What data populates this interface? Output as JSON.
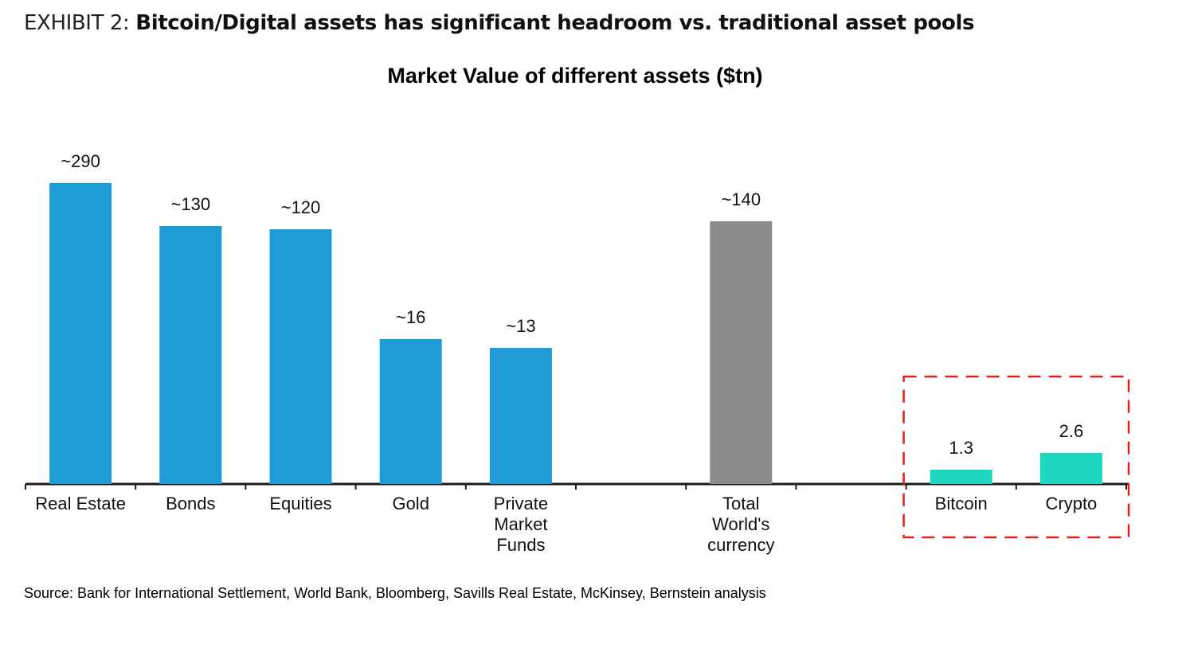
{
  "exhibit": {
    "prefix": "EXHIBIT 2: ",
    "headline": "Bitcoin/Digital assets has significant headroom vs. traditional asset pools"
  },
  "source": "Source: Bank for International Settlement, World Bank, Bloomberg, Savills Real Estate, McKinsey, Bernstein analysis",
  "chart_data": {
    "type": "bar",
    "title": "Market Value of different assets ($tn)",
    "categories": [
      [
        "Real Estate"
      ],
      [
        "Bonds"
      ],
      [
        "Equities"
      ],
      [
        "Gold"
      ],
      [
        "Private",
        "Market",
        "Funds"
      ],
      [
        ""
      ],
      [
        "Total",
        "World's",
        "currency"
      ],
      [
        ""
      ],
      [
        "Bitcoin"
      ],
      [
        "Crypto"
      ]
    ],
    "values": [
      290,
      130,
      120,
      16,
      13,
      null,
      140,
      null,
      1.3,
      2.6
    ],
    "data_labels": [
      "~290",
      "~130",
      "~120",
      "~16",
      "~13",
      "",
      "~140",
      "",
      "1.3",
      "2.6"
    ],
    "scale": "non-linear (illustrative)",
    "colors": {
      "traditional": "#1f9bd7",
      "currency": "#8c8c8c",
      "digital": "#1dd7c2",
      "highlight_box": "#e02020"
    },
    "bar_colors": [
      "#1f9bd7",
      "#1f9bd7",
      "#1f9bd7",
      "#1f9bd7",
      "#1f9bd7",
      null,
      "#8c8c8c",
      null,
      "#1dd7c2",
      "#1dd7c2"
    ],
    "highlight": {
      "categories": [
        "Bitcoin",
        "Crypto"
      ],
      "style": "dashed red box"
    }
  }
}
